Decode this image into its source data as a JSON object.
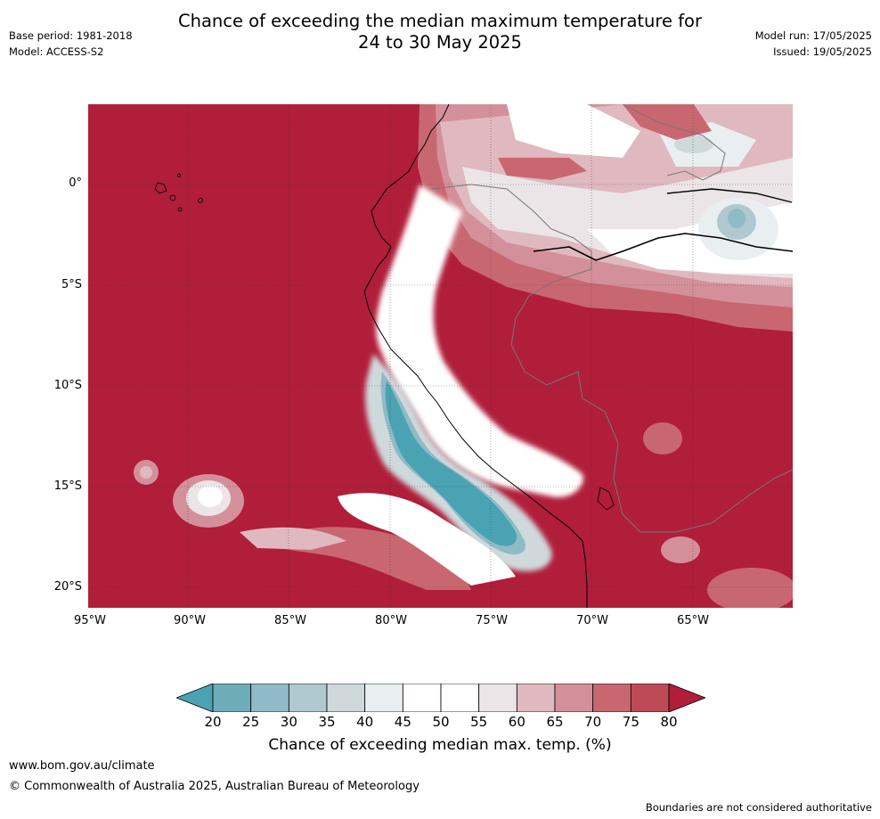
{
  "title_line1": "Chance of exceeding the median maximum temperature for",
  "title_line2": "24 to 30 May 2025",
  "meta_left": [
    "Base period: 1981-2018",
    "Model: ACCESS-S2"
  ],
  "meta_right": [
    "Model run: 17/05/2025",
    "Issued: 19/05/2025"
  ],
  "lat_labels": [
    "0°",
    "5°S",
    "10°S",
    "15°S",
    "20°S"
  ],
  "lon_labels": [
    "95°W",
    "90°W",
    "85°W",
    "80°W",
    "75°W",
    "70°W",
    "65°W"
  ],
  "colorbar": {
    "ticks": [
      "20",
      "25",
      "30",
      "35",
      "40",
      "45",
      "50",
      "55",
      "60",
      "65",
      "70",
      "75",
      "80"
    ],
    "colors": [
      "#4aa3b2",
      "#6dadb9",
      "#8fbbc6",
      "#b0c8cf",
      "#cfd9dc",
      "#e9eff1",
      "#ffffff",
      "#ffffff",
      "#ebe5e7",
      "#dfb9bf",
      "#d4909a",
      "#c96771",
      "#bf4a57",
      "#b01e3a"
    ],
    "label": "Chance of exceeding median max. temp. (%)"
  },
  "footer": {
    "website": "www.bom.gov.au/climate",
    "copyright": "© Commonwealth of Australia 2025, Australian Bureau of Meteorology",
    "disclaimer": "Boundaries are not considered authoritative"
  }
}
